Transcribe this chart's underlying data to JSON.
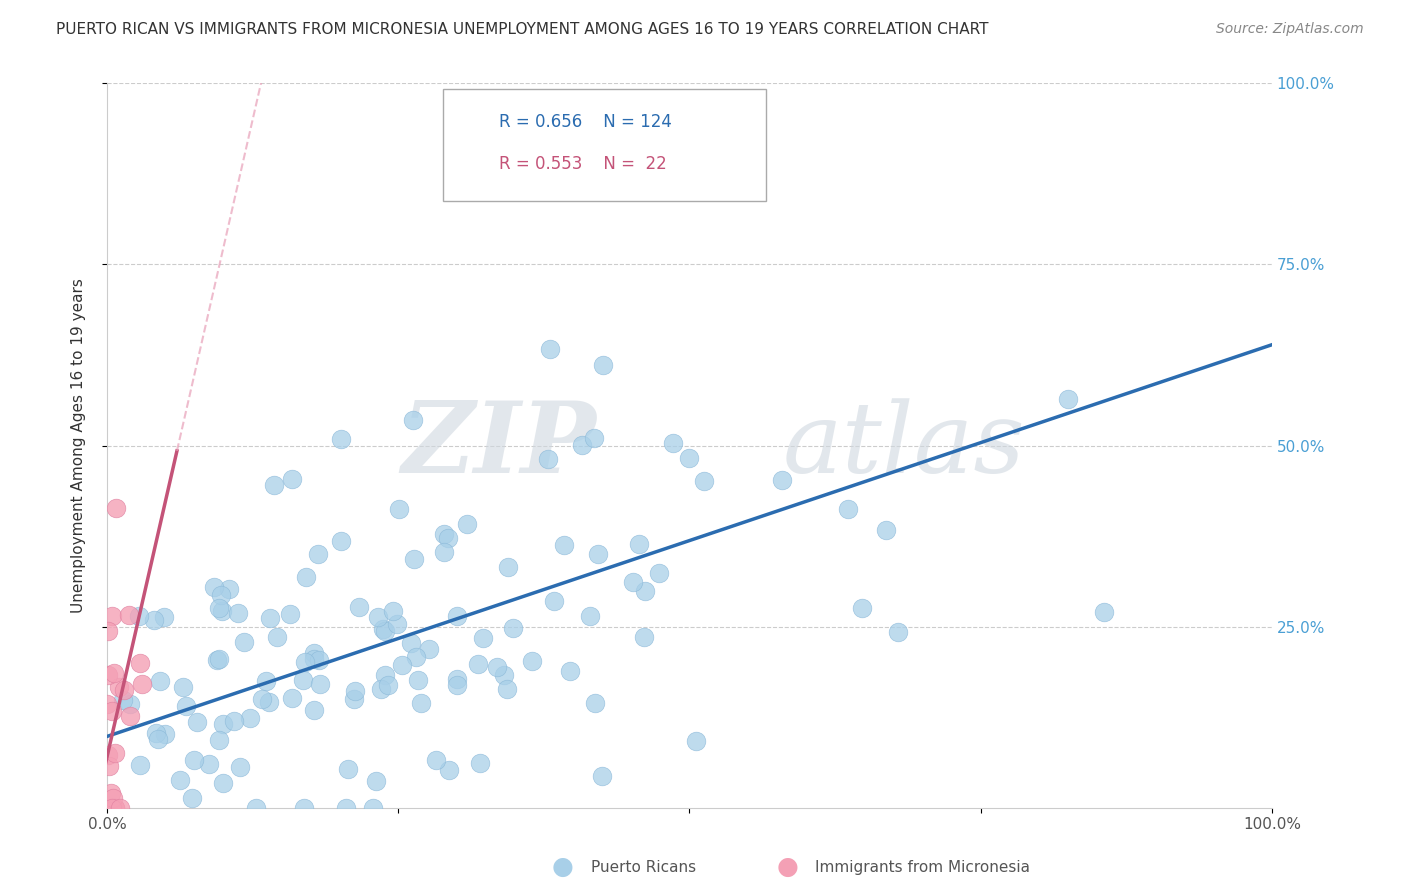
{
  "title": "PUERTO RICAN VS IMMIGRANTS FROM MICRONESIA UNEMPLOYMENT AMONG AGES 16 TO 19 YEARS CORRELATION CHART",
  "source": "Source: ZipAtlas.com",
  "ylabel": "Unemployment Among Ages 16 to 19 years",
  "xlim": [
    0.0,
    1.0
  ],
  "ylim": [
    0.0,
    1.0
  ],
  "xticks": [
    0.0,
    0.25,
    0.5,
    0.75,
    1.0
  ],
  "xticklabels": [
    "0.0%",
    "",
    "",
    "",
    "100.0%"
  ],
  "yticks": [
    0.25,
    0.5,
    0.75,
    1.0
  ],
  "yticklabels": [
    "25.0%",
    "50.0%",
    "75.0%",
    "100.0%"
  ],
  "blue_color": "#a8cfe8",
  "pink_color": "#f4a0b5",
  "blue_line_color": "#2b6cb0",
  "pink_line_color": "#c45378",
  "pink_dash_color": "#e8a0b8",
  "watermark_zip": "ZIP",
  "watermark_atlas": "atlas",
  "legend_r_blue": "0.656",
  "legend_n_blue": "124",
  "legend_r_pink": "0.553",
  "legend_n_pink": " 22",
  "background_color": "#ffffff",
  "grid_color": "#cccccc",
  "title_fontsize": 11,
  "source_fontsize": 10,
  "tick_fontsize": 11,
  "ylabel_fontsize": 11,
  "yticklabel_color": "#4a9fd4",
  "xticklabel_color": "#555555"
}
